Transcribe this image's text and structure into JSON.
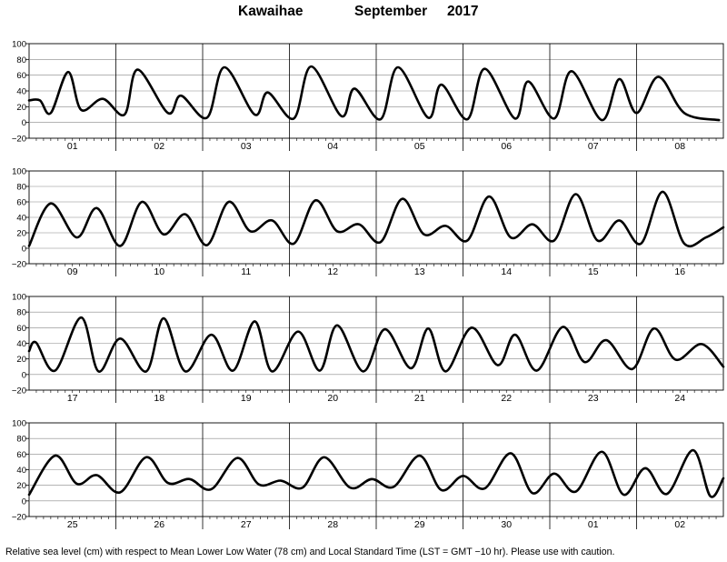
{
  "header": {
    "station": "Kawaihae",
    "month": "September",
    "year": "2017"
  },
  "footer": {
    "note": "Relative sea level (cm) with respect to Mean Lower Low Water (78 cm) and Local Standard Time (LST = GMT −10 hr). Please use with caution."
  },
  "chart_data": [
    {
      "type": "line",
      "title": "Kawaihae September 2017",
      "ylim": [
        -20,
        100
      ],
      "yticks": [
        -20,
        0,
        20,
        40,
        60,
        80,
        100
      ],
      "ytick_labels": [
        "−20",
        "0",
        "20",
        "40",
        "60",
        "80",
        "100"
      ],
      "xlabels": [
        "01",
        "02",
        "03",
        "04",
        "05",
        "06",
        "07",
        "08"
      ],
      "series": [
        {
          "x": [
            0,
            0.125,
            0.25,
            0.45,
            0.6,
            0.85,
            1.1,
            1.25,
            1.6,
            1.75,
            2.05,
            2.25,
            2.6,
            2.75,
            3.05,
            3.25,
            3.6,
            3.75,
            4.05,
            4.25,
            4.6,
            4.75,
            5.05,
            5.25,
            5.6,
            5.75,
            6.05,
            6.25,
            6.6,
            6.8,
            7.0,
            7.25,
            7.55,
            7.95
          ],
          "y": [
            28,
            28,
            12,
            64,
            16,
            30,
            10,
            67,
            12,
            34,
            6,
            70,
            10,
            38,
            5,
            71,
            8,
            43,
            4,
            70,
            6,
            48,
            4,
            68,
            5,
            52,
            5,
            65,
            3,
            55,
            12,
            58,
            12,
            3
          ]
        }
      ]
    },
    {
      "type": "line",
      "ylim": [
        -20,
        100
      ],
      "yticks": [
        -20,
        0,
        20,
        40,
        60,
        80,
        100
      ],
      "ytick_labels": [
        "−20",
        "0",
        "20",
        "40",
        "60",
        "80",
        "100"
      ],
      "xlabels": [
        "09",
        "10",
        "11",
        "12",
        "13",
        "14",
        "15",
        "16"
      ],
      "series": [
        {
          "x": [
            0,
            0.25,
            0.55,
            0.78,
            1.05,
            1.3,
            1.55,
            1.8,
            2.05,
            2.3,
            2.55,
            2.8,
            3.05,
            3.3,
            3.55,
            3.8,
            4.05,
            4.3,
            4.55,
            4.8,
            5.05,
            5.3,
            5.55,
            5.8,
            6.05,
            6.3,
            6.55,
            6.8,
            7.05,
            7.3,
            7.55,
            7.8,
            8.0
          ],
          "y": [
            3,
            58,
            14,
            52,
            3,
            60,
            18,
            44,
            4,
            60,
            22,
            36,
            6,
            62,
            22,
            31,
            8,
            64,
            18,
            29,
            10,
            67,
            14,
            31,
            10,
            70,
            10,
            36,
            6,
            73,
            6,
            14,
            27
          ]
        }
      ]
    },
    {
      "type": "line",
      "ylim": [
        -20,
        100
      ],
      "yticks": [
        -20,
        0,
        20,
        40,
        60,
        80,
        100
      ],
      "ytick_labels": [
        "−20",
        "0",
        "20",
        "40",
        "60",
        "80",
        "100"
      ],
      "xlabels": [
        "17",
        "18",
        "19",
        "20",
        "21",
        "22",
        "23",
        "24"
      ],
      "series": [
        {
          "x": [
            0,
            0.08,
            0.3,
            0.6,
            0.8,
            1.05,
            1.35,
            1.55,
            1.8,
            2.1,
            2.35,
            2.6,
            2.8,
            3.1,
            3.35,
            3.55,
            3.85,
            4.1,
            4.4,
            4.6,
            4.8,
            5.1,
            5.4,
            5.6,
            5.85,
            6.15,
            6.4,
            6.65,
            6.95,
            7.2,
            7.45,
            7.75,
            8.0
          ],
          "y": [
            30,
            41,
            5,
            73,
            4,
            46,
            4,
            72,
            4,
            51,
            5,
            68,
            4,
            55,
            5,
            63,
            4,
            58,
            8,
            59,
            4,
            60,
            12,
            51,
            5,
            61,
            16,
            44,
            7,
            59,
            19,
            39,
            10
          ]
        }
      ]
    },
    {
      "type": "line",
      "ylim": [
        -20,
        100
      ],
      "yticks": [
        -20,
        0,
        20,
        40,
        60,
        80,
        100
      ],
      "xlabels": [
        "25",
        "26",
        "27",
        "28",
        "29",
        "30",
        "01",
        "02"
      ],
      "ytick_labels": [
        "−20",
        "0",
        "20",
        "40",
        "60",
        "80",
        "100"
      ],
      "series": [
        {
          "x": [
            0,
            0.3,
            0.55,
            0.78,
            1.05,
            1.35,
            1.6,
            1.85,
            2.1,
            2.4,
            2.65,
            2.9,
            3.15,
            3.4,
            3.7,
            3.95,
            4.2,
            4.5,
            4.75,
            5.0,
            5.25,
            5.55,
            5.8,
            6.05,
            6.3,
            6.6,
            6.85,
            7.1,
            7.35,
            7.65,
            7.85,
            8.0
          ],
          "y": [
            8,
            58,
            22,
            33,
            11,
            56,
            23,
            28,
            15,
            55,
            21,
            26,
            17,
            56,
            17,
            28,
            18,
            58,
            14,
            32,
            16,
            61,
            10,
            35,
            12,
            63,
            8,
            42,
            9,
            65,
            6,
            29
          ]
        }
      ]
    }
  ]
}
